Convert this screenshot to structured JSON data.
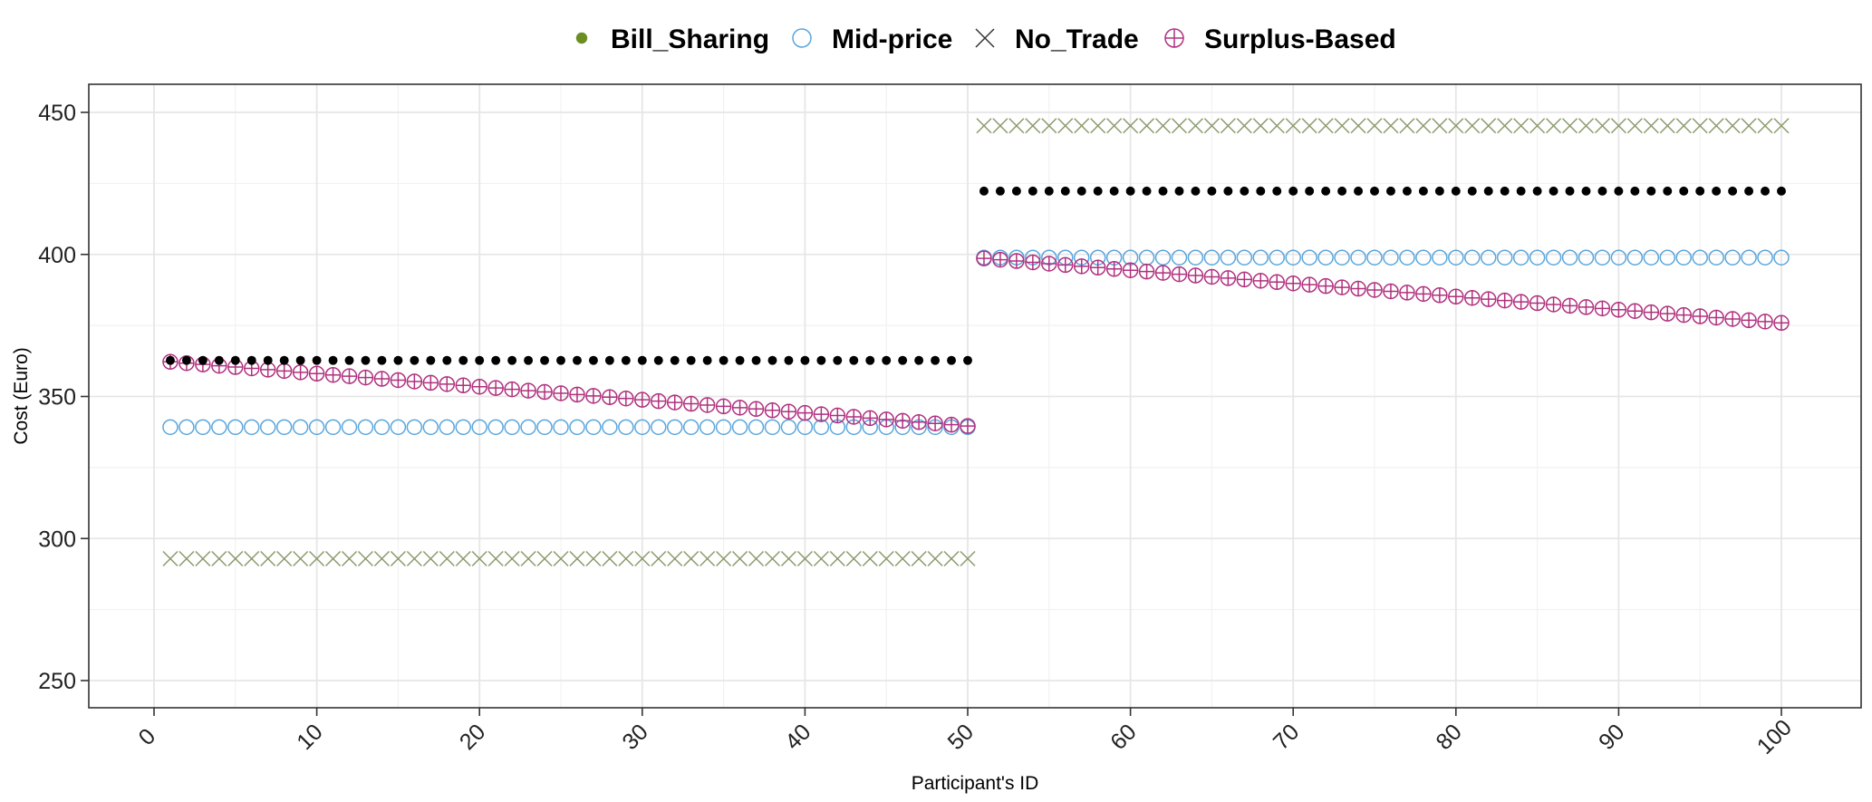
{
  "chart_data": {
    "type": "scatter",
    "title": "",
    "xlabel": "Participant's ID",
    "ylabel": "Cost (Euro)",
    "xlim": [
      -4,
      104
    ],
    "ylim": [
      241,
      451
    ],
    "x_ticks": [
      0,
      10,
      20,
      30,
      40,
      50,
      60,
      70,
      80,
      90,
      100
    ],
    "y_ticks": [
      250,
      300,
      350,
      400,
      450
    ],
    "grid": true,
    "legend_position": "top",
    "legend": [
      {
        "name": "Bill_Sharing",
        "marker": "filled-circle",
        "color": "#6b8e23"
      },
      {
        "name": "Mid-price",
        "marker": "open-circle",
        "color": "#5aa6dc"
      },
      {
        "name": "No_Trade",
        "marker": "x",
        "color": "#333333"
      },
      {
        "name": "Surplus-Based",
        "marker": "circle-plus",
        "color": "#b0307f"
      }
    ],
    "series": [
      {
        "name": "Bill_Sharing",
        "drawn_color": "#000000",
        "marker": "filled-circle",
        "segments": [
          {
            "x_from": 1,
            "x_to": 50,
            "value_from": 362.7,
            "value_to": 362.7
          },
          {
            "x_from": 51,
            "x_to": 100,
            "value_from": 422.3,
            "value_to": 422.3
          }
        ]
      },
      {
        "name": "Mid-price",
        "drawn_color": "#5aa6dc",
        "marker": "open-circle",
        "segments": [
          {
            "x_from": 1,
            "x_to": 50,
            "value_from": 339.2,
            "value_to": 339.2
          },
          {
            "x_from": 51,
            "x_to": 100,
            "value_from": 398.9,
            "value_to": 398.9
          }
        ]
      },
      {
        "name": "No_Trade",
        "drawn_color": "#8a9a6a",
        "marker": "x",
        "segments": [
          {
            "x_from": 1,
            "x_to": 50,
            "value_from": 292.9,
            "value_to": 292.9
          },
          {
            "x_from": 51,
            "x_to": 100,
            "value_from": 445.3,
            "value_to": 445.3
          }
        ]
      },
      {
        "name": "Surplus-Based",
        "drawn_color": "#b0307f",
        "marker": "circle-plus",
        "segments": [
          {
            "x_from": 1,
            "x_to": 50,
            "value_from": 362.2,
            "value_to": 339.6
          },
          {
            "x_from": 51,
            "x_to": 100,
            "value_from": 398.6,
            "value_to": 375.9
          }
        ]
      }
    ]
  }
}
